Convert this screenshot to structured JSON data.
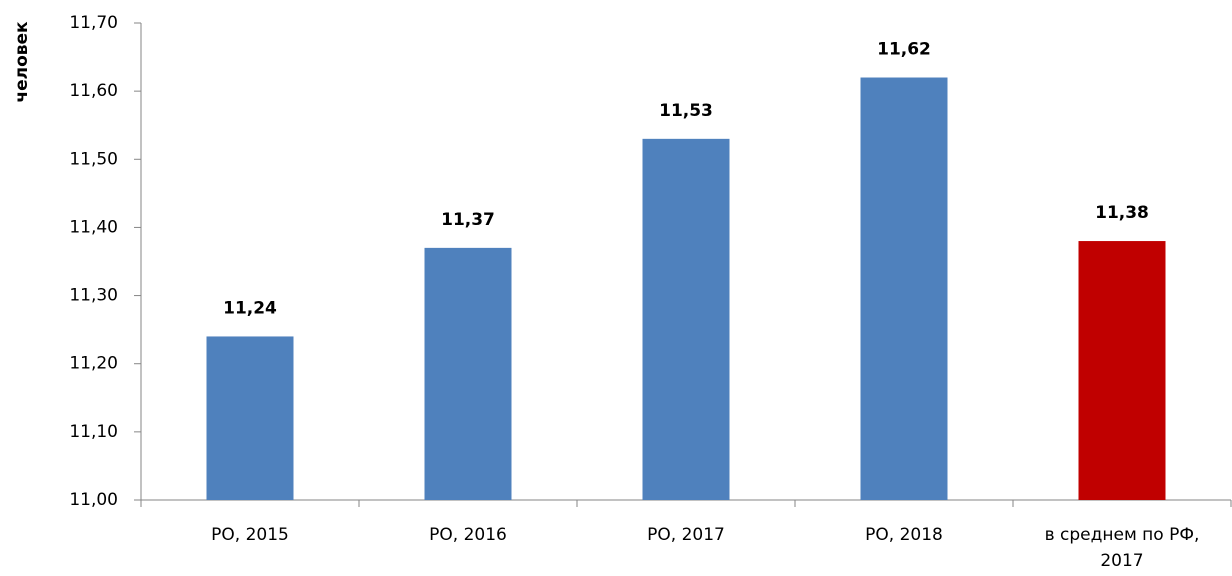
{
  "chart_data": {
    "type": "bar",
    "y_label": "человек",
    "categories": [
      "РО, 2015",
      "РО, 2016",
      "РО, 2017",
      "РО, 2018",
      "в среднем по РФ, 2017"
    ],
    "values": [
      11.24,
      11.37,
      11.53,
      11.62,
      11.38
    ],
    "value_labels": [
      "11,24",
      "11,37",
      "11,53",
      "11,62",
      "11,38"
    ],
    "colors": [
      "#4f81bd",
      "#4f81bd",
      "#4f81bd",
      "#4f81bd",
      "#c00000"
    ],
    "ylim": [
      11.0,
      11.7
    ],
    "yticks": [
      {
        "value": 11.0,
        "label": "11,00"
      },
      {
        "value": 11.1,
        "label": "11,10"
      },
      {
        "value": 11.2,
        "label": "11,20"
      },
      {
        "value": 11.3,
        "label": "11,30"
      },
      {
        "value": 11.4,
        "label": "11,40"
      },
      {
        "value": 11.5,
        "label": "11,50"
      },
      {
        "value": 11.6,
        "label": "11,60"
      },
      {
        "value": 11.7,
        "label": "11,70"
      }
    ],
    "grid": false
  }
}
